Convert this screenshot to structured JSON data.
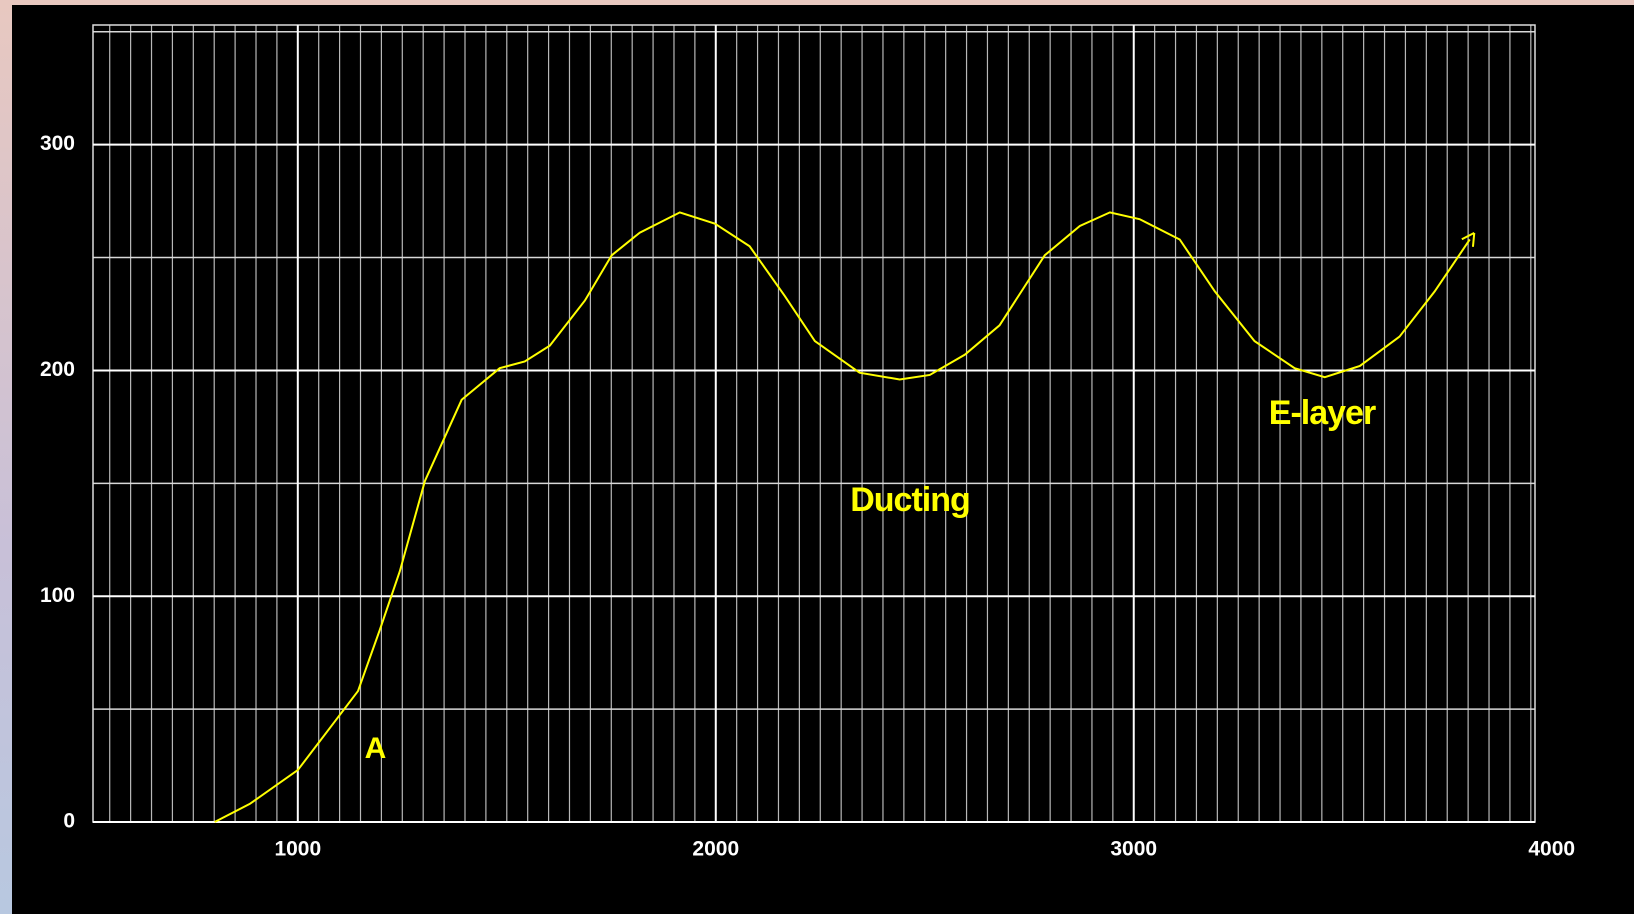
{
  "chart_data": {
    "type": "line",
    "x": [
      801,
      885,
      1000,
      1144,
      1196,
      1244,
      1304,
      1392,
      1483,
      1543,
      1603,
      1687,
      1751,
      1818,
      1914,
      1998,
      2081,
      2165,
      2237,
      2344,
      2440,
      2512,
      2596,
      2679,
      2787,
      2871,
      2943,
      3014,
      3110,
      3194,
      3289,
      3385,
      3457,
      3541,
      3636,
      3720,
      3804
    ],
    "series": [
      {
        "color": "#ffff00",
        "values": [
          0,
          8,
          23,
          58,
          85,
          111,
          151,
          187,
          201,
          204,
          211,
          231,
          251,
          261,
          270,
          265,
          255,
          233,
          213,
          199,
          196,
          198,
          207,
          220,
          251,
          264,
          270,
          267,
          258,
          235,
          213,
          201,
          197,
          202,
          215,
          235,
          258
        ]
      }
    ],
    "xlim": [
      510,
      3960
    ],
    "ylim": [
      0,
      353
    ],
    "xticks": [
      1000,
      2000,
      3000,
      4000
    ],
    "yticks": [
      0,
      100,
      200,
      300
    ],
    "grid": true,
    "xgrid_step": 50,
    "ygrid_step": 50,
    "annotations": [
      "A",
      "Ducting",
      "E-layer"
    ]
  }
}
